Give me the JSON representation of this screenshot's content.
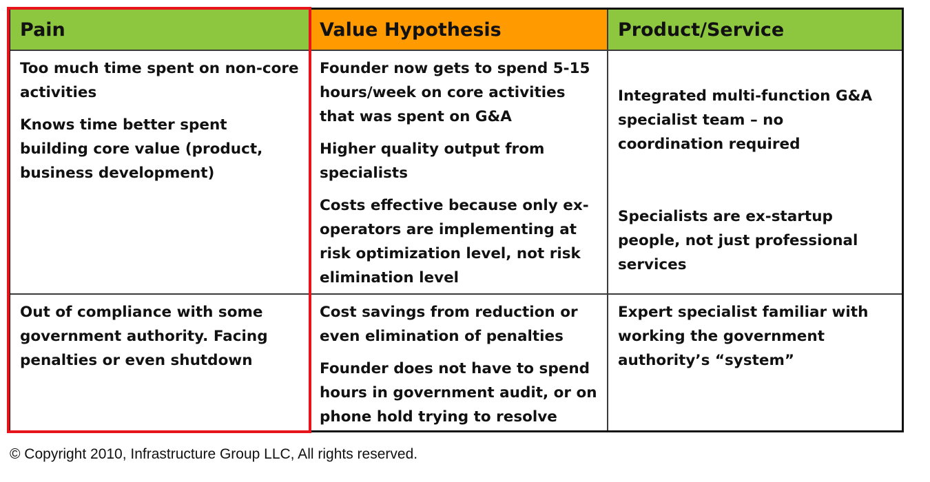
{
  "table": {
    "headers": {
      "pain": "Pain",
      "value": "Value Hypothesis",
      "product": "Product/Service"
    },
    "rows": [
      {
        "pain": [
          "Too much time spent on non-core activities",
          "Knows time better spent building core value (product, business development)"
        ],
        "value": [
          "Founder now gets to spend 5-15 hours/week on core activities that was spent on G&A",
          "Higher quality output from specialists",
          "Costs effective because only ex-operators are implementing at risk optimization level, not risk elimination level"
        ],
        "product": [
          "Integrated multi-function G&A specialist team – no coordination required",
          "Specialists are ex-startup people, not just professional services"
        ]
      },
      {
        "pain": [
          "Out of compliance with some government authority.  Facing penalties or even shutdown"
        ],
        "value": [
          "Cost savings from reduction or even elimination of penalties",
          "Founder does not have to spend hours in government audit, or on phone hold trying to resolve"
        ],
        "product": [
          "Expert specialist familiar with working the government authority’s “system”"
        ]
      }
    ]
  },
  "colors": {
    "pain_header": "#8dc63f",
    "value_header": "#ff9b00",
    "product_header": "#8dc63f",
    "highlight": "#e8141c"
  },
  "footer": {
    "copyright": "© Copyright 2010, Infrastructure Group LLC, All rights reserved."
  }
}
